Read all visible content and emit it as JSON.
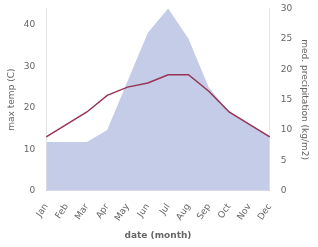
{
  "chart_data": {
    "type": "line",
    "categories": [
      "Jan",
      "Feb",
      "Mar",
      "Apr",
      "May",
      "Jun",
      "Jul",
      "Aug",
      "Sep",
      "Oct",
      "Nov",
      "Dec"
    ],
    "series": [
      {
        "type": "area",
        "color": "#c5cce8",
        "axis": "y2",
        "values": [
          8,
          8,
          8,
          10,
          18,
          26,
          30,
          25,
          17,
          13,
          11,
          9
        ]
      },
      {
        "type": "line",
        "color": "#993355",
        "values": [
          13,
          16,
          19,
          23,
          25,
          26,
          28,
          28,
          24,
          19,
          16,
          13
        ]
      }
    ],
    "xlabel": "date (month)",
    "ylabel": "max temp (C)",
    "y2label": "med. precipitation (kg/m2)",
    "ylim": [
      0,
      44
    ],
    "yticks": [
      0,
      10,
      20,
      30,
      40
    ],
    "y2lim": [
      0,
      30
    ],
    "y2ticks": [
      0,
      5,
      10,
      15,
      20,
      25,
      30
    ],
    "grid": false
  }
}
